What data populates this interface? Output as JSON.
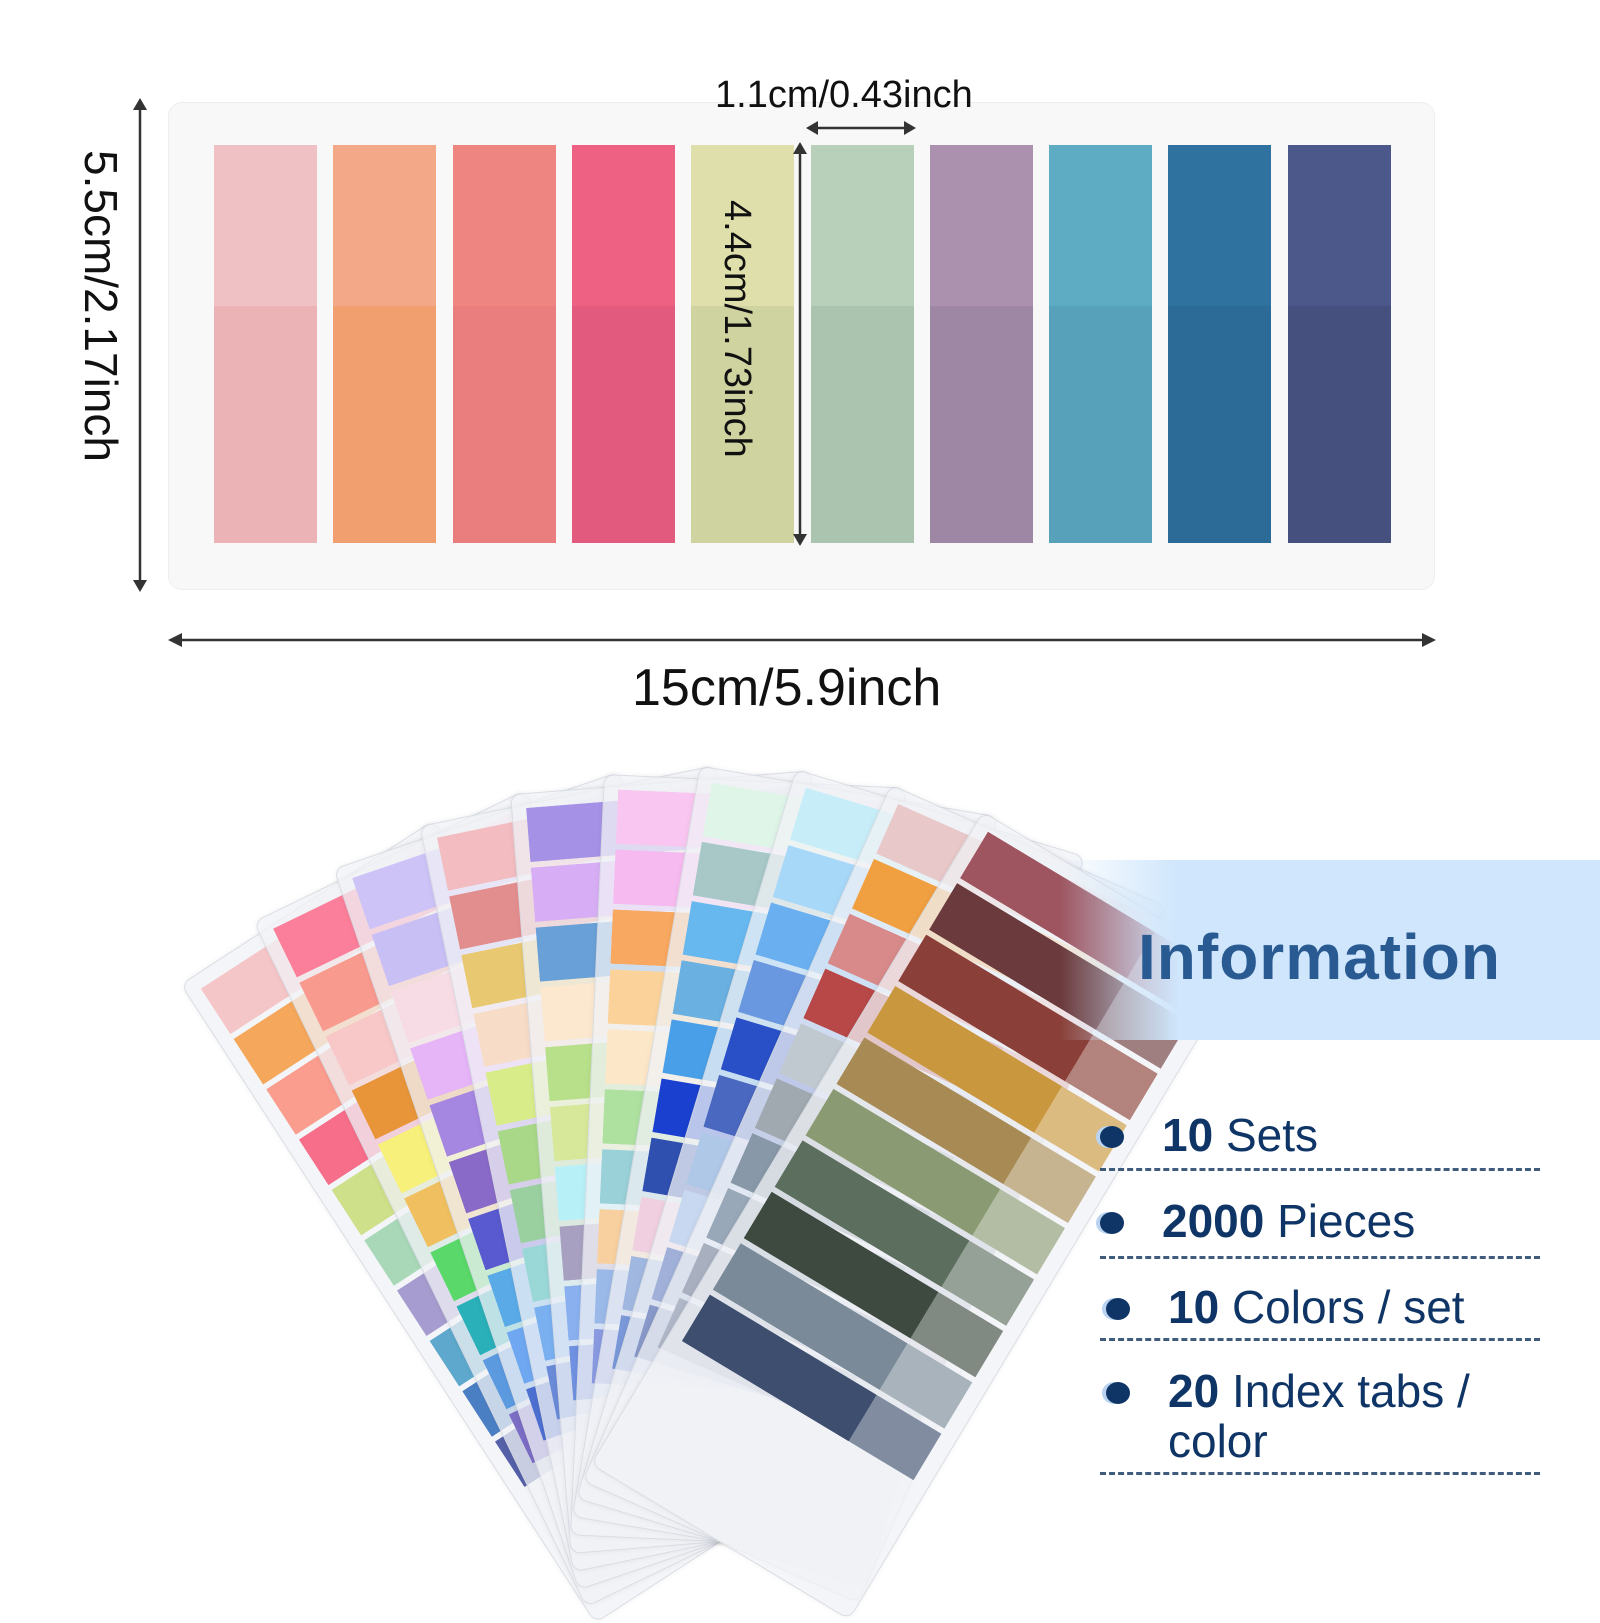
{
  "dimensions": {
    "tab_width": "1.1cm/0.43inch",
    "tab_height": "4.4cm/1.73inch",
    "sheet_height": "5.5cm/2.17inch",
    "sheet_width": "15cm/5.9inch"
  },
  "strip_colors": [
    [
      "#efc1c4",
      "#ecb3b6"
    ],
    [
      "#f3a988",
      "#f29f6f"
    ],
    [
      "#ef8580",
      "#ea7d7e"
    ],
    [
      "#ee6183",
      "#e25b7f"
    ],
    [
      "#dedfab",
      "#cfd39f"
    ],
    [
      "#b8d0ba",
      "#aac4b0"
    ],
    [
      "#ab91ae",
      "#9e86a5"
    ],
    [
      "#5eacc3",
      "#57a2ba"
    ],
    [
      "#2f72a0",
      "#2c6a98"
    ],
    [
      "#4c5889",
      "#45507f"
    ]
  ],
  "fan_sheets": [
    [
      "#f5c6c8",
      "#f5a85c",
      "#fa9c8e",
      "#f76e8a",
      "#cfe08a",
      "#a8d8b8",
      "#a79ccf",
      "#5da8cc",
      "#4b7fc4",
      "#5560a8"
    ],
    [
      "#fb7f9a",
      "#f99a8f",
      "#f8c8c8",
      "#e8953a",
      "#f7f07a",
      "#f0c060",
      "#5ad86a",
      "#2ab0b8",
      "#5c9ae0",
      "#7b6cc4"
    ],
    [
      "#cdc3f7",
      "#c8c0f5",
      "#f8dce5",
      "#e5b5f7",
      "#a586e0",
      "#8a6ac8",
      "#5a5ad0",
      "#5aaae8",
      "#6fa8f0",
      "#4d6fd0"
    ],
    [
      "#f2bcc0",
      "#e38e8e",
      "#e8c870",
      "#f7dcc8",
      "#d8ec8a",
      "#a8d888",
      "#9ad0a0",
      "#9ad8d8",
      "#7ab0f0",
      "#6a8ad8"
    ],
    [
      "#a592e6",
      "#d7aef5",
      "#6aa0d8",
      "#fbe8cf",
      "#b8e08a",
      "#d8e89a",
      "#b8f0f8",
      "#a8a0c0",
      "#8ab0f0",
      "#7090e0"
    ],
    [
      "#f8c6f0",
      "#f6baf0",
      "#f8a860",
      "#fbd39a",
      "#fce8c8",
      "#aee0a0",
      "#9ad0d8",
      "#f8d0a0",
      "#9ab8e8",
      "#8a9ae0"
    ],
    [
      "#dff5e8",
      "#a8c8c8",
      "#68b8f0",
      "#6ab0e0",
      "#4aa0e8",
      "#1a40d0",
      "#3050b0",
      "#f0d0e0",
      "#a0b8e0",
      "#7a98d8"
    ],
    [
      "#c7eef8",
      "#a8d8f8",
      "#6ab0f0",
      "#6a98e0",
      "#2a50c8",
      "#4a68c0",
      "#b0c8e8",
      "#c8d8f0",
      "#a0b0d8",
      "#8898c8"
    ],
    [
      "#e8c8c8",
      "#f0a040",
      "#d88a8a",
      "#b84848",
      "#c0c8d0",
      "#a0a8b0",
      "#8898a8",
      "#98a8b8",
      "#a8b0c0",
      "#b0b8c8"
    ],
    [
      "#9e5560",
      "#6b3a3c",
      "#8a4038",
      "#c9973d",
      "#a88a55",
      "#8a9a72",
      "#5c6e5e",
      "#3e4a40",
      "#7a8a98",
      "#3d4e6e"
    ]
  ],
  "info": {
    "title": "Information",
    "items": [
      {
        "num": "10",
        "text": "Sets"
      },
      {
        "num": "2000",
        "text": "Pieces"
      },
      {
        "num": "10",
        "text": "Colors / set"
      },
      {
        "num": "20",
        "text": "Index tabs / color"
      }
    ],
    "text_color": "#0f3566",
    "banner_color": "#cfe6fc"
  }
}
